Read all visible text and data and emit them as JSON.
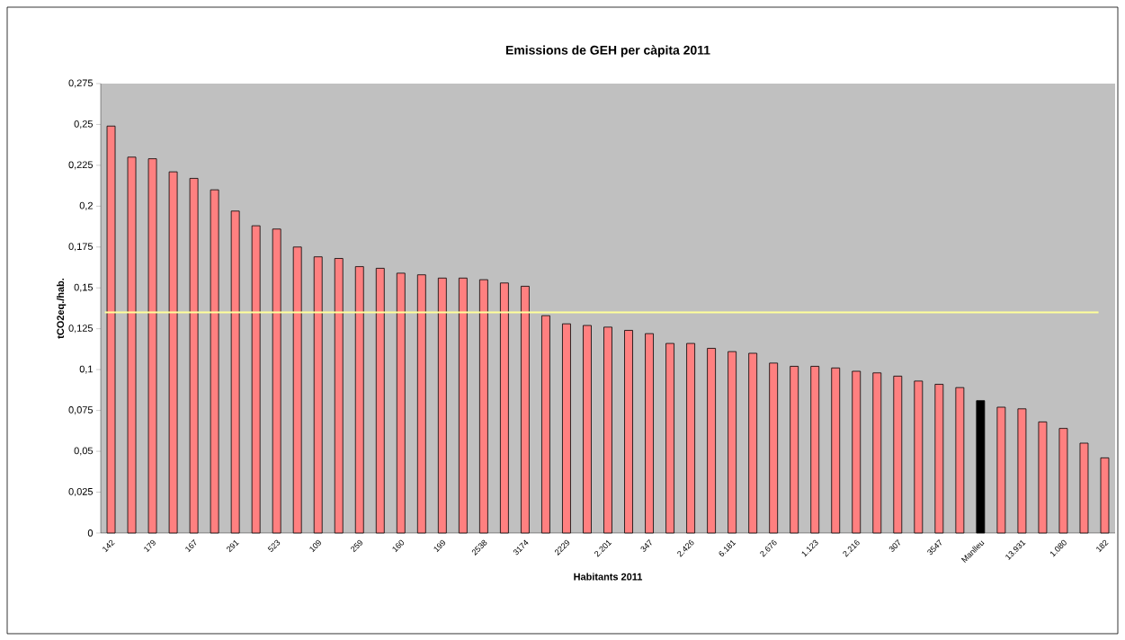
{
  "chart_data": {
    "type": "bar",
    "title": "Emissions de GEH per càpita 2011",
    "xlabel": "Habitants 2011",
    "ylabel": "tCO2eq./hab.",
    "categories": [
      "142",
      null,
      "179",
      null,
      "167",
      null,
      "291",
      null,
      "523",
      null,
      "109",
      null,
      "259",
      null,
      "160",
      null,
      "199",
      null,
      "2538",
      null,
      "3174",
      null,
      "2229",
      null,
      "2.201",
      null,
      "347",
      null,
      "2.426",
      null,
      "6.181",
      null,
      "2.676",
      null,
      "1.123",
      null,
      "2.216",
      null,
      "307",
      null,
      "3547",
      null,
      "Manlleu",
      null,
      "13.931",
      null,
      "1.080",
      null,
      "182"
    ],
    "values": [
      0.249,
      0.23,
      0.229,
      0.221,
      0.217,
      0.21,
      0.197,
      0.188,
      0.186,
      0.175,
      0.169,
      0.168,
      0.163,
      0.162,
      0.159,
      0.158,
      0.156,
      0.156,
      0.155,
      0.153,
      0.151,
      0.133,
      0.128,
      0.127,
      0.126,
      0.124,
      0.122,
      0.116,
      0.116,
      0.113,
      0.111,
      0.11,
      0.104,
      0.102,
      0.102,
      0.101,
      0.099,
      0.098,
      0.096,
      0.093,
      0.091,
      0.089,
      0.081,
      0.077,
      0.076,
      0.068,
      0.064,
      0.055,
      0.046
    ],
    "colors": [
      "#ff8080",
      "#ff8080",
      "#ff8080",
      "#ff8080",
      "#ff8080",
      "#ff8080",
      "#ff8080",
      "#ff8080",
      "#ff8080",
      "#ff8080",
      "#ff8080",
      "#ff8080",
      "#ff8080",
      "#ff8080",
      "#ff8080",
      "#ff8080",
      "#ff8080",
      "#ff8080",
      "#ff8080",
      "#ff8080",
      "#ff8080",
      "#ff8080",
      "#ff8080",
      "#ff8080",
      "#ff8080",
      "#ff8080",
      "#ff8080",
      "#ff8080",
      "#ff8080",
      "#ff8080",
      "#ff8080",
      "#ff8080",
      "#ff8080",
      "#ff8080",
      "#ff8080",
      "#ff8080",
      "#ff8080",
      "#ff8080",
      "#ff8080",
      "#ff8080",
      "#ff8080",
      "#ff8080",
      "#000000",
      "#ff8080",
      "#ff8080",
      "#ff8080",
      "#ff8080",
      "#ff8080",
      "#ff8080"
    ],
    "ylim": [
      0,
      0.275
    ],
    "yticks": [
      0,
      {
        "value": 0.025,
        "label": "0,025"
      },
      {
        "value": 0.05,
        "label": "0,05"
      },
      {
        "value": 0.075,
        "label": "0,075"
      },
      {
        "value": 0.1,
        "label": "0,1"
      },
      {
        "value": 0.125,
        "label": "0,125"
      },
      {
        "value": 0.15,
        "label": "0,15"
      },
      {
        "value": 0.175,
        "label": "0,175"
      },
      {
        "value": 0.2,
        "label": "0,2"
      },
      {
        "value": 0.225,
        "label": "0,225"
      },
      {
        "value": 0.25,
        "label": "0,25"
      },
      {
        "value": 0.275,
        "label": "0,275"
      }
    ],
    "ref_lines": [
      {
        "axis": "y",
        "value": 0.135,
        "color": "#ffff99"
      }
    ],
    "grid": false
  }
}
